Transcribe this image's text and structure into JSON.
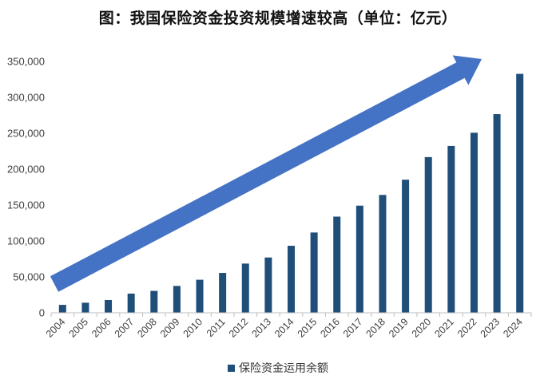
{
  "chart_data": {
    "type": "bar",
    "title": "图：我国保险资金投资规模增速较高（单位：亿元）",
    "xlabel": "",
    "ylabel": "",
    "ylim": [
      0,
      350000
    ],
    "yticks": [
      0,
      50000,
      100000,
      150000,
      200000,
      250000,
      300000,
      350000
    ],
    "ytick_labels": [
      "0",
      "50,000",
      "100,000",
      "150,000",
      "200,000",
      "250,000",
      "300,000",
      "350,000"
    ],
    "categories": [
      "2004",
      "2005",
      "2006",
      "2007",
      "2008",
      "2009",
      "2010",
      "2011",
      "2012",
      "2013",
      "2014",
      "2015",
      "2016",
      "2017",
      "2018",
      "2019",
      "2020",
      "2021",
      "2022",
      "2023",
      "2024"
    ],
    "series": [
      {
        "name": "保险资金运用余额",
        "color": "#1f4e79",
        "values": [
          11000,
          14000,
          17800,
          26700,
          30500,
          37400,
          46000,
          55500,
          68500,
          77000,
          93300,
          111800,
          133900,
          149200,
          164100,
          185300,
          216800,
          232300,
          250700,
          276600,
          332700
        ]
      }
    ],
    "legend_position": "bottom",
    "annotations": [
      {
        "type": "trend-arrow",
        "color": "#4472c4",
        "direction": "up-right"
      }
    ],
    "grid": false
  }
}
